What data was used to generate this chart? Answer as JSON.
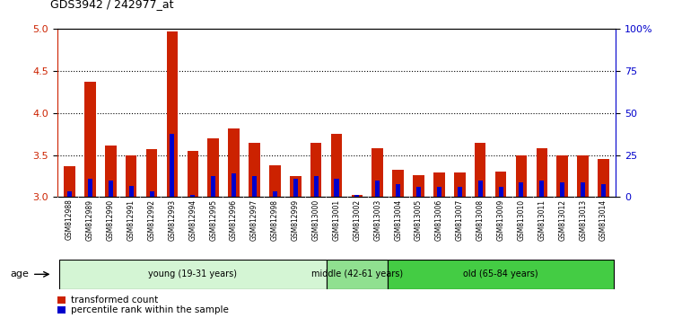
{
  "title": "GDS3942 / 242977_at",
  "samples": [
    "GSM812988",
    "GSM812989",
    "GSM812990",
    "GSM812991",
    "GSM812992",
    "GSM812993",
    "GSM812994",
    "GSM812995",
    "GSM812996",
    "GSM812997",
    "GSM812998",
    "GSM812999",
    "GSM813000",
    "GSM813001",
    "GSM813002",
    "GSM813003",
    "GSM813004",
    "GSM813005",
    "GSM813006",
    "GSM813007",
    "GSM813008",
    "GSM813009",
    "GSM813010",
    "GSM813011",
    "GSM813012",
    "GSM813013",
    "GSM813014"
  ],
  "red_values": [
    3.37,
    4.37,
    3.61,
    3.5,
    3.57,
    4.97,
    3.55,
    3.7,
    3.82,
    3.65,
    3.38,
    3.25,
    3.65,
    3.75,
    3.03,
    3.58,
    3.33,
    3.26,
    3.29,
    3.29,
    3.65,
    3.3,
    3.5,
    3.58,
    3.5,
    3.5,
    3.45
  ],
  "blue_values": [
    3.07,
    3.22,
    3.2,
    3.13,
    3.07,
    3.75,
    3.03,
    3.25,
    3.28,
    3.25,
    3.07,
    3.22,
    3.25,
    3.22,
    3.03,
    3.2,
    3.15,
    3.12,
    3.12,
    3.12,
    3.2,
    3.12,
    3.18,
    3.2,
    3.18,
    3.18,
    3.15
  ],
  "baseline": 3.0,
  "ylim_left": [
    3.0,
    5.0
  ],
  "ylim_right": [
    0,
    100
  ],
  "yticks_left": [
    3.0,
    3.5,
    4.0,
    4.5,
    5.0
  ],
  "yticks_right": [
    0,
    25,
    50,
    75,
    100
  ],
  "ytick_labels_right": [
    "0",
    "25",
    "50",
    "75",
    "100%"
  ],
  "groups": [
    {
      "label": "young (19-31 years)",
      "start": 0,
      "end": 13,
      "color": "#d4f5d4"
    },
    {
      "label": "middle (42-61 years)",
      "start": 13,
      "end": 16,
      "color": "#90e090"
    },
    {
      "label": "old (65-84 years)",
      "start": 16,
      "end": 27,
      "color": "#44cc44"
    }
  ],
  "red_color": "#cc2200",
  "blue_color": "#0000cc",
  "bar_width": 0.55,
  "background_color": "#ffffff",
  "plot_bg_color": "#ffffff",
  "xlab_bg_color": "#d0d0d0",
  "grid_color": "#000000",
  "legend_red": "transformed count",
  "legend_blue": "percentile rank within the sample",
  "age_label": "age"
}
